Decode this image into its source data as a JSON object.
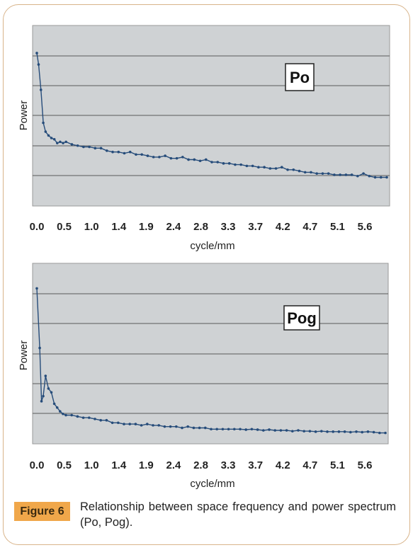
{
  "figure": {
    "label": "Figure 6",
    "caption": "Relationship between space frequency and power spectrum (Po, Pog)."
  },
  "colors": {
    "line": "#264c7a",
    "plot_bg": "#cfd2d4",
    "grid": "#5a5a5a",
    "label_bg": "#f0a74a"
  },
  "chart_data": [
    {
      "type": "line",
      "inset_label": "Po",
      "ylabel": "Power",
      "xlabel": "cycle/mm",
      "xticks": [
        "0.0",
        "0.5",
        "1.0",
        "1.4",
        "1.9",
        "2.4",
        "2.8",
        "3.3",
        "3.7",
        "4.2",
        "4.7",
        "5.1",
        "5.6"
      ],
      "xlim": [
        0,
        6.0
      ],
      "ylim": [
        0,
        6
      ],
      "grid": true,
      "x": [
        0.0,
        0.03,
        0.07,
        0.11,
        0.15,
        0.2,
        0.25,
        0.3,
        0.35,
        0.4,
        0.45,
        0.5,
        0.6,
        0.7,
        0.8,
        0.9,
        1.0,
        1.1,
        1.2,
        1.3,
        1.4,
        1.5,
        1.6,
        1.7,
        1.8,
        1.9,
        2.0,
        2.1,
        2.2,
        2.3,
        2.4,
        2.5,
        2.6,
        2.7,
        2.8,
        2.9,
        3.0,
        3.1,
        3.2,
        3.3,
        3.4,
        3.5,
        3.6,
        3.7,
        3.8,
        3.9,
        4.0,
        4.1,
        4.2,
        4.3,
        4.4,
        4.5,
        4.6,
        4.7,
        4.8,
        4.9,
        5.0,
        5.1,
        5.2,
        5.3,
        5.4,
        5.5,
        5.6,
        5.7,
        5.8,
        5.9,
        6.0
      ],
      "values": [
        5.75,
        5.3,
        4.3,
        3.0,
        2.65,
        2.5,
        2.4,
        2.35,
        2.2,
        2.25,
        2.2,
        2.25,
        2.15,
        2.1,
        2.05,
        2.05,
        2.0,
        2.0,
        1.9,
        1.85,
        1.85,
        1.8,
        1.85,
        1.75,
        1.75,
        1.7,
        1.65,
        1.65,
        1.7,
        1.6,
        1.6,
        1.65,
        1.55,
        1.55,
        1.5,
        1.55,
        1.45,
        1.45,
        1.4,
        1.4,
        1.35,
        1.35,
        1.3,
        1.3,
        1.25,
        1.25,
        1.2,
        1.2,
        1.25,
        1.15,
        1.15,
        1.1,
        1.05,
        1.05,
        1.0,
        1.0,
        1.0,
        0.95,
        0.95,
        0.95,
        0.95,
        0.9,
        1.0,
        0.9,
        0.85,
        0.85,
        0.85
      ]
    },
    {
      "type": "line",
      "inset_label": "Pog",
      "ylabel": "Power",
      "xlabel": "cycle/mm",
      "xticks": [
        "0.0",
        "0.5",
        "1.0",
        "1.4",
        "1.9",
        "2.4",
        "2.8",
        "3.3",
        "3.7",
        "4.2",
        "4.7",
        "5.1",
        "5.6"
      ],
      "xlim": [
        0,
        6.0
      ],
      "ylim": [
        0,
        6
      ],
      "grid": true,
      "x": [
        0.0,
        0.05,
        0.08,
        0.11,
        0.15,
        0.2,
        0.25,
        0.3,
        0.35,
        0.4,
        0.45,
        0.5,
        0.6,
        0.7,
        0.8,
        0.9,
        1.0,
        1.1,
        1.2,
        1.3,
        1.4,
        1.5,
        1.6,
        1.7,
        1.8,
        1.9,
        2.0,
        2.1,
        2.2,
        2.3,
        2.4,
        2.5,
        2.6,
        2.7,
        2.8,
        2.9,
        3.0,
        3.1,
        3.2,
        3.3,
        3.4,
        3.5,
        3.6,
        3.7,
        3.8,
        3.9,
        4.0,
        4.1,
        4.2,
        4.3,
        4.4,
        4.5,
        4.6,
        4.7,
        4.8,
        4.9,
        5.0,
        5.1,
        5.2,
        5.3,
        5.4,
        5.5,
        5.6,
        5.7,
        5.8,
        5.9,
        6.0
      ],
      "values": [
        5.85,
        3.5,
        1.4,
        1.6,
        2.4,
        1.9,
        1.75,
        1.3,
        1.15,
        1.0,
        0.9,
        0.85,
        0.85,
        0.8,
        0.75,
        0.75,
        0.7,
        0.65,
        0.65,
        0.55,
        0.55,
        0.5,
        0.5,
        0.5,
        0.45,
        0.5,
        0.45,
        0.45,
        0.4,
        0.4,
        0.4,
        0.35,
        0.4,
        0.35,
        0.35,
        0.35,
        0.3,
        0.3,
        0.3,
        0.3,
        0.3,
        0.3,
        0.28,
        0.3,
        0.28,
        0.25,
        0.28,
        0.25,
        0.25,
        0.25,
        0.22,
        0.25,
        0.22,
        0.22,
        0.2,
        0.22,
        0.2,
        0.2,
        0.2,
        0.2,
        0.18,
        0.2,
        0.18,
        0.2,
        0.18,
        0.15,
        0.15
      ]
    }
  ]
}
